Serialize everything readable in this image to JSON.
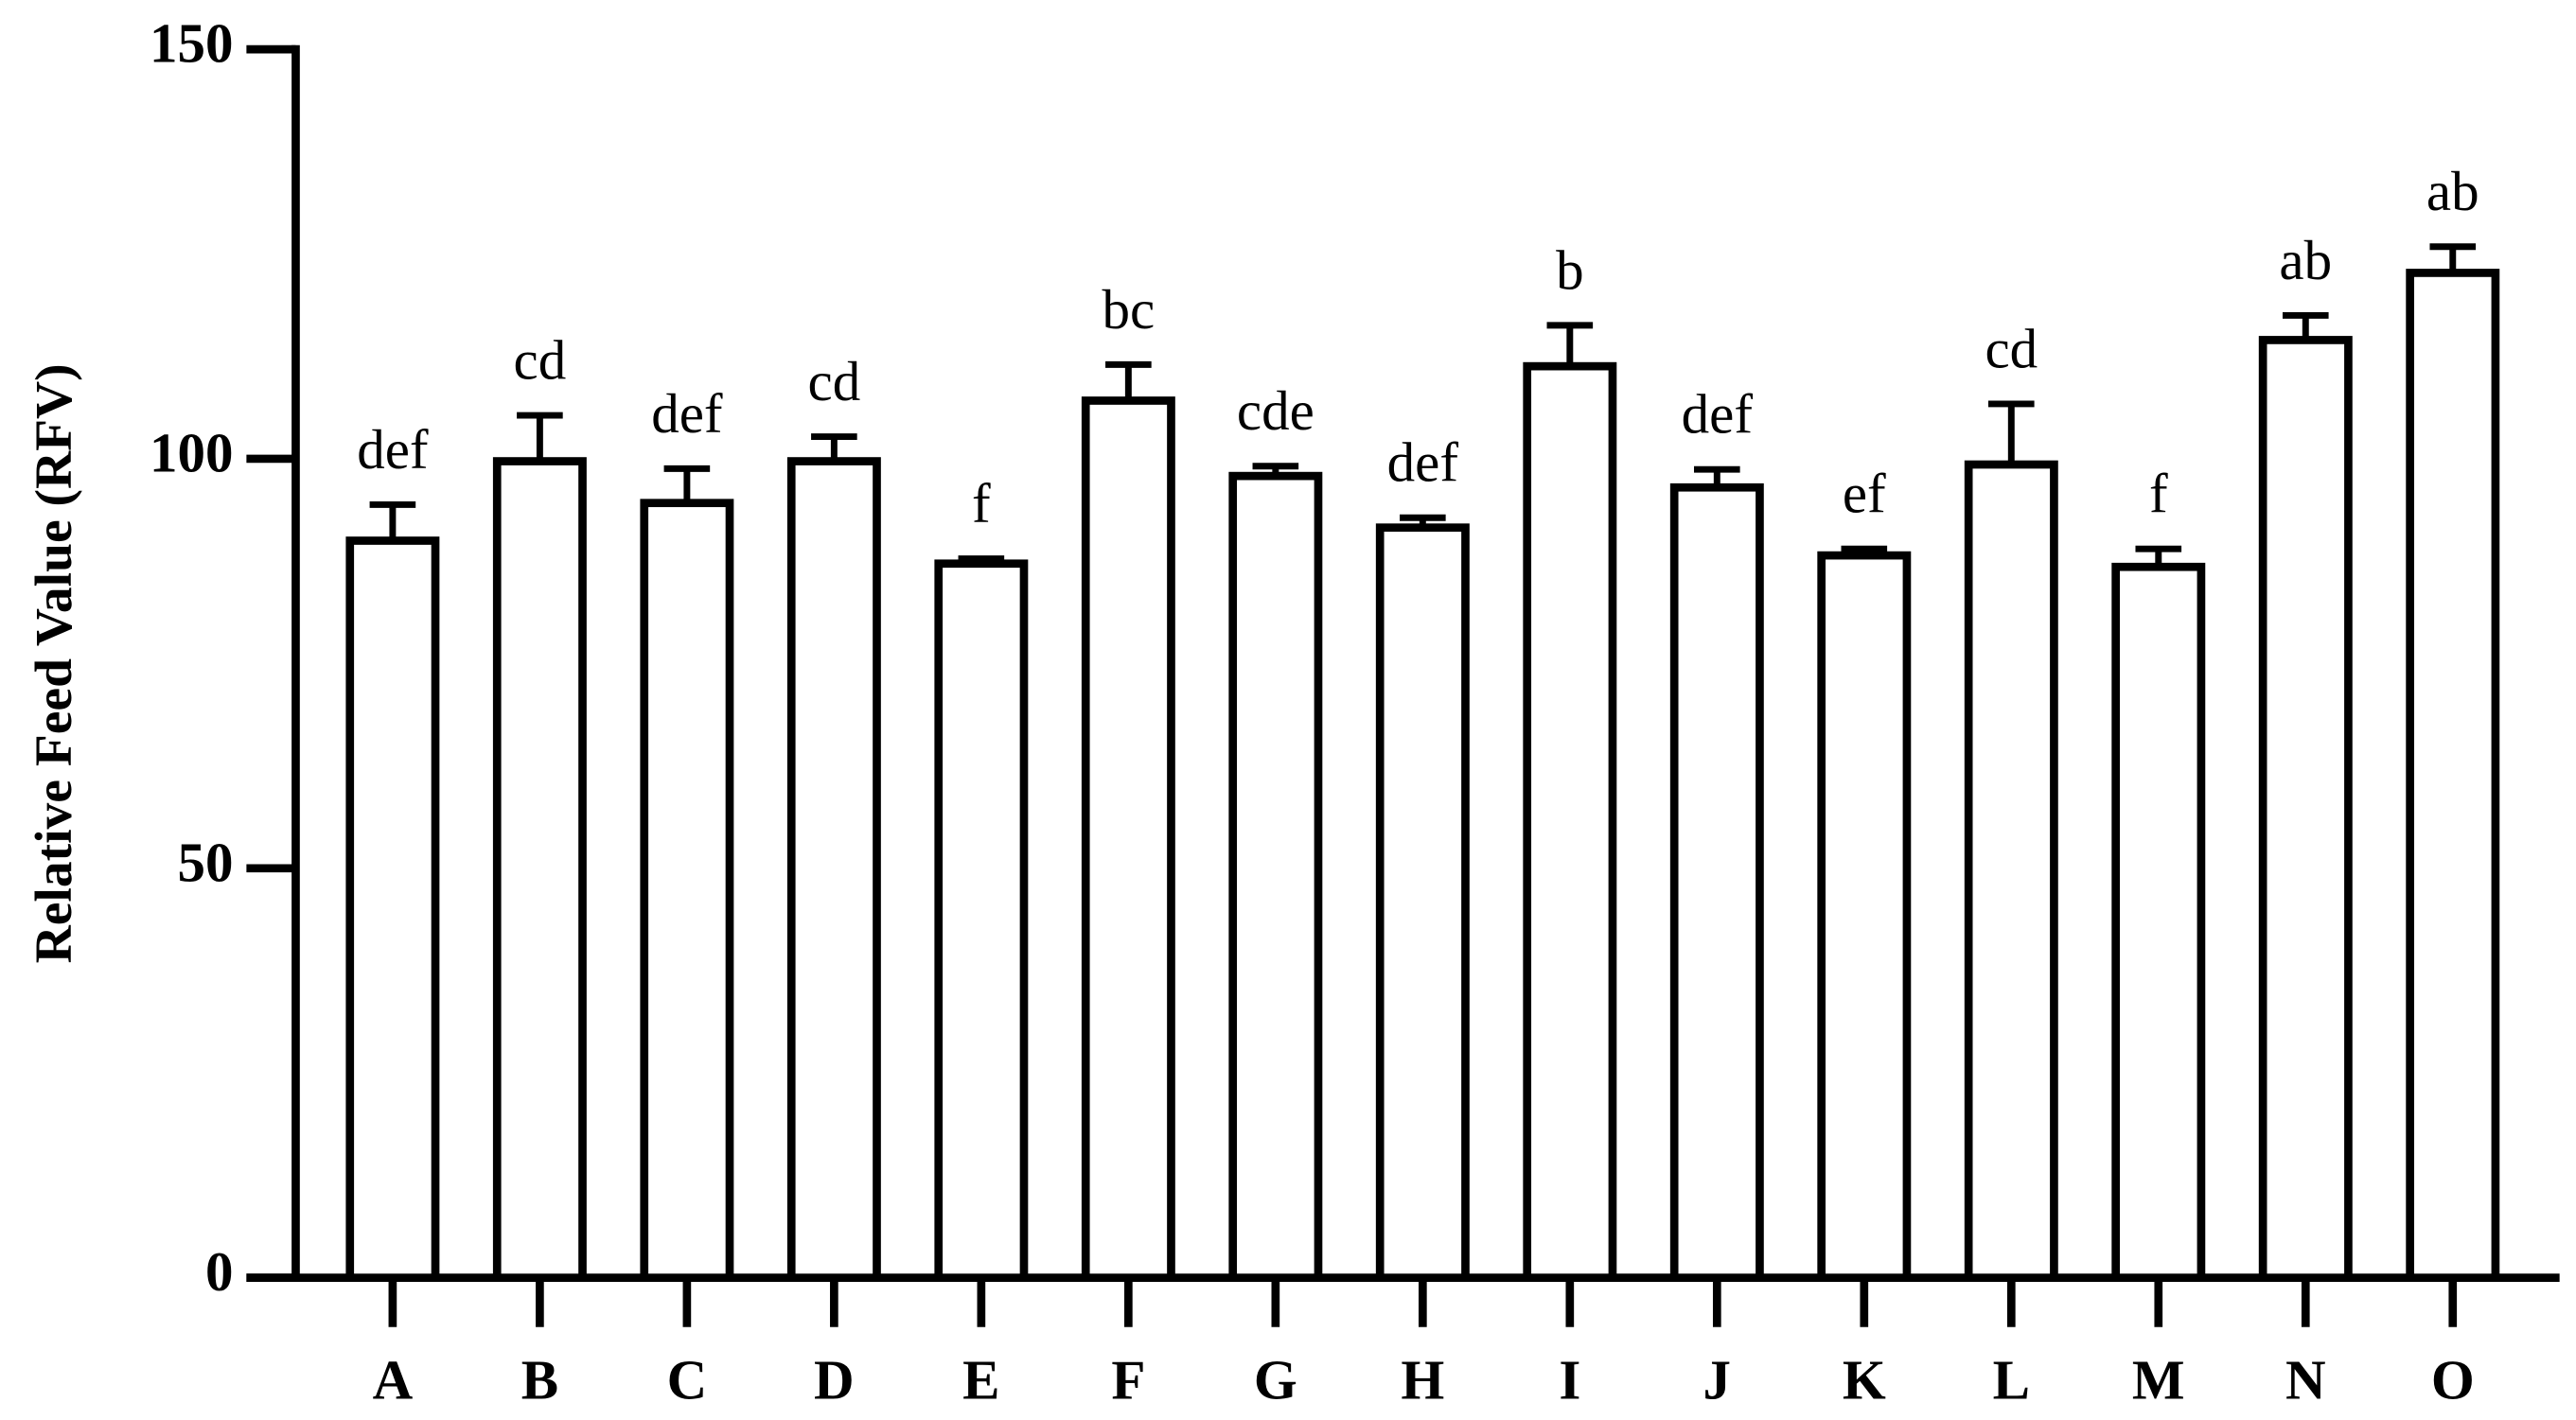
{
  "chart_data": {
    "type": "bar",
    "ylabel": "Relative Feed Value (RFV)",
    "categories": [
      "A",
      "B",
      "C",
      "D",
      "E",
      "F",
      "G",
      "H",
      "I",
      "J",
      "K",
      "L",
      "M",
      "N",
      "O"
    ],
    "values": [
      90.0,
      99.7,
      94.6,
      99.7,
      87.2,
      107.1,
      97.9,
      91.6,
      111.3,
      96.5,
      88.2,
      99.3,
      86.8,
      114.5,
      122.7
    ],
    "errors": [
      4.4,
      5.6,
      4.2,
      3.0,
      0.6,
      4.4,
      1.2,
      1.2,
      5.0,
      2.2,
      0.8,
      7.4,
      2.2,
      3.0,
      3.2
    ],
    "group_labels": [
      "def",
      "cd",
      "def",
      "cd",
      "f",
      "bc",
      "cde",
      "def",
      "b",
      "def",
      "ef",
      "cd",
      "f",
      "ab",
      "ab"
    ],
    "color": "#ffffff",
    "edgecolor": "#000000",
    "ylim": [
      0,
      150
    ],
    "yticks": [
      0,
      50,
      100,
      150
    ],
    "grid": false
  }
}
